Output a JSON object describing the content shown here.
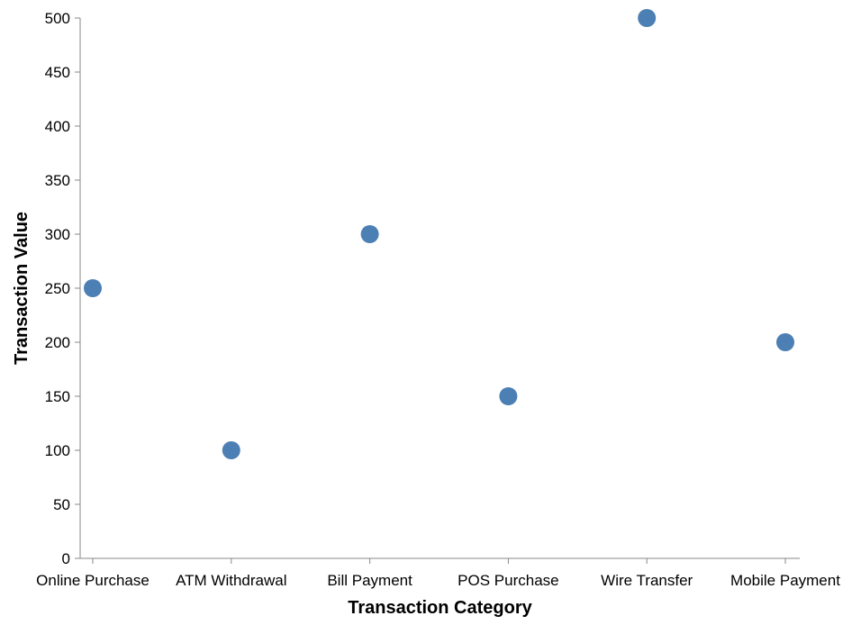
{
  "chart_data": {
    "type": "scatter",
    "title": "",
    "xlabel": "Transaction Category",
    "ylabel": "Transaction Value",
    "categories": [
      "Online Purchase",
      "ATM Withdrawal",
      "Bill Payment",
      "POS Purchase",
      "Wire Transfer",
      "Mobile Payment"
    ],
    "values": [
      250,
      100,
      300,
      150,
      500,
      200
    ],
    "ylim": [
      0,
      500
    ],
    "yticks": [
      0,
      50,
      100,
      150,
      200,
      250,
      300,
      350,
      400,
      450,
      500
    ],
    "grid": false,
    "point_color": "#4c7fb4"
  }
}
